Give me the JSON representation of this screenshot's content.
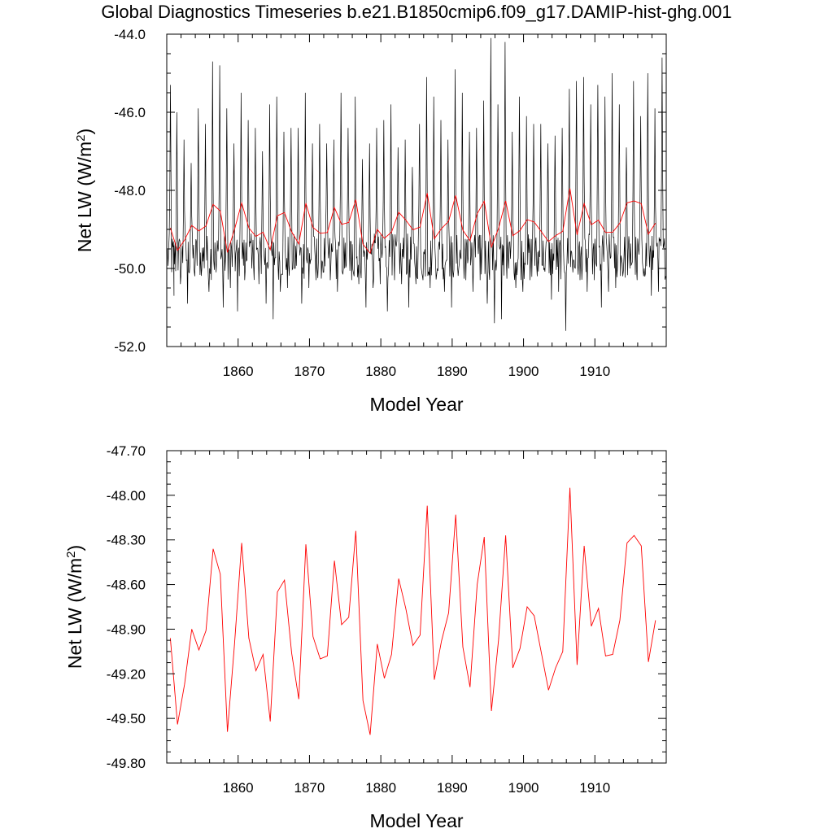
{
  "title": "Global Diagnostics Timeseries b.e21.B1850cmip6.f09_g17.DAMIP-hist-ghg.001",
  "colors": {
    "monthly": "#000000",
    "annual": "#ff0000",
    "axis": "#000000"
  },
  "chart_data": [
    {
      "type": "line",
      "xlabel": "Model Year",
      "ylabel_main": "Net LW (W/m",
      "ylabel_sup": "2",
      "ylabel_end": ")",
      "xlim": [
        1850,
        1920
      ],
      "ylim": [
        -52.0,
        -44.0
      ],
      "x_ticks": [
        1860,
        1870,
        1880,
        1890,
        1900,
        1910
      ],
      "y_ticks": [
        -52.0,
        -50.0,
        -48.0,
        -46.0,
        -44.0
      ],
      "y_tick_labels": [
        "-52.0",
        "-50.0",
        "-48.0",
        "-46.0",
        "-44.0"
      ],
      "grid": false,
      "series": [
        {
          "style": "monthly",
          "color": "#000000",
          "annual_peak_x": [
            1850.5,
            1851.4,
            1852.4,
            1853.4,
            1854.4,
            1855.4,
            1856.4,
            1857.4,
            1858.4,
            1859.4,
            1860.4,
            1861.4,
            1862.4,
            1863.4,
            1864.4,
            1865.4,
            1866.4,
            1867.4,
            1868.4,
            1869.4,
            1870.4,
            1871.4,
            1872.4,
            1873.4,
            1874.4,
            1875.4,
            1876.4,
            1877.4,
            1878.4,
            1879.4,
            1880.4,
            1881.4,
            1882.4,
            1883.4,
            1884.4,
            1885.4,
            1886.4,
            1887.4,
            1888.4,
            1889.4,
            1890.4,
            1891.4,
            1892.4,
            1893.4,
            1894.4,
            1895.4,
            1896.4,
            1897.4,
            1898.4,
            1899.4,
            1900.4,
            1901.4,
            1902.4,
            1903.4,
            1904.4,
            1905.4,
            1906.4,
            1907.4,
            1908.4,
            1909.4,
            1910.4,
            1911.4,
            1912.4,
            1913.4,
            1914.4,
            1915.4,
            1916.4,
            1917.4,
            1918.4,
            1919.4
          ],
          "annual_peak": [
            -45.3,
            -46.0,
            -46.7,
            -47.3,
            -45.9,
            -46.3,
            -44.7,
            -44.8,
            -45.9,
            -46.8,
            -45.5,
            -46.2,
            -46.4,
            -47.0,
            -45.8,
            -45.6,
            -46.5,
            -46.4,
            -46.4,
            -45.5,
            -46.8,
            -46.3,
            -46.8,
            -46.7,
            -45.5,
            -46.4,
            -45.6,
            -47.2,
            -46.8,
            -46.4,
            -46.2,
            -45.8,
            -46.9,
            -46.7,
            -47.4,
            -46.3,
            -45.1,
            -45.6,
            -46.2,
            -46.7,
            -44.9,
            -45.5,
            -46.5,
            -46.4,
            -45.7,
            -44.1,
            -45.8,
            -44.2,
            -46.5,
            -45.6,
            -46.1,
            -46.3,
            -46.3,
            -46.8,
            -46.6,
            -46.4,
            -45.4,
            -45.2,
            -45.1,
            -45.8,
            -45.3,
            -45.6,
            -45.0,
            -45.8,
            -46.9,
            -45.2,
            -46.1,
            -45.0,
            -45.9,
            -44.6
          ],
          "annual_trough": [
            -50.7,
            -50.4,
            -50.9,
            -50.2,
            -50.0,
            -50.6,
            -50.1,
            -51.0,
            -50.5,
            -51.1,
            -50.3,
            -50.0,
            -50.4,
            -50.9,
            -51.3,
            -50.6,
            -50.5,
            -50.0,
            -50.9,
            -50.5,
            -50.3,
            -50.1,
            -50.3,
            -50.6,
            -50.0,
            -50.3,
            -50.4,
            -51.0,
            -50.5,
            -50.4,
            -51.1,
            -50.3,
            -50.4,
            -51.0,
            -50.4,
            -50.3,
            -50.5,
            -50.0,
            -50.6,
            -51.0,
            -50.0,
            -50.3,
            -50.6,
            -50.3,
            -50.9,
            -51.4,
            -51.3,
            -50.0,
            -50.5,
            -50.6,
            -50.3,
            -50.2,
            -50.0,
            -50.8,
            -50.6,
            -51.6,
            -50.1,
            -50.3,
            -50.6,
            -50.3,
            -51.0,
            -50.6,
            -50.5,
            -50.2,
            -50.0,
            -50.3,
            -50.0,
            -50.7,
            -50.6,
            -50.2
          ]
        },
        {
          "style": "annual",
          "color": "#ff0000",
          "x": [
            1850.5,
            1851.5,
            1852.5,
            1853.5,
            1854.5,
            1855.5,
            1856.5,
            1857.5,
            1858.5,
            1859.5,
            1860.5,
            1861.5,
            1862.5,
            1863.5,
            1864.5,
            1865.5,
            1866.5,
            1867.5,
            1868.5,
            1869.5,
            1870.5,
            1871.5,
            1872.5,
            1873.5,
            1874.5,
            1875.5,
            1876.5,
            1877.5,
            1878.5,
            1879.5,
            1880.5,
            1881.5,
            1882.5,
            1883.5,
            1884.5,
            1885.5,
            1886.5,
            1887.5,
            1888.5,
            1889.5,
            1890.5,
            1891.5,
            1892.5,
            1893.5,
            1894.5,
            1895.5,
            1896.5,
            1897.5,
            1898.5,
            1899.5,
            1900.5,
            1901.5,
            1902.5,
            1903.5,
            1904.5,
            1905.5,
            1906.5,
            1907.5,
            1908.5,
            1909.5,
            1910.5,
            1911.5,
            1912.5,
            1913.5,
            1914.5,
            1915.5,
            1916.5,
            1917.5,
            1918.5
          ],
          "y": [
            -48.96,
            -49.54,
            -49.27,
            -48.9,
            -49.04,
            -48.91,
            -48.36,
            -48.53,
            -49.59,
            -49.0,
            -48.32,
            -48.96,
            -49.18,
            -49.07,
            -49.52,
            -48.65,
            -48.57,
            -49.06,
            -49.37,
            -48.33,
            -48.95,
            -49.1,
            -49.08,
            -48.44,
            -48.87,
            -48.82,
            -48.24,
            -49.38,
            -49.61,
            -49.0,
            -49.23,
            -49.07,
            -48.56,
            -48.76,
            -49.01,
            -48.94,
            -48.07,
            -49.24,
            -48.98,
            -48.79,
            -48.13,
            -49.02,
            -49.29,
            -48.6,
            -48.28,
            -49.45,
            -48.97,
            -48.27,
            -49.16,
            -49.03,
            -48.75,
            -48.81,
            -49.06,
            -49.31,
            -49.16,
            -49.05,
            -47.95,
            -49.14,
            -48.34,
            -48.88,
            -48.76,
            -49.08,
            -49.07,
            -48.84,
            -48.32,
            -48.27,
            -48.34,
            -49.12,
            -48.84
          ]
        }
      ]
    },
    {
      "type": "line",
      "xlabel": "Model Year",
      "ylabel_main": "Net LW (W/m",
      "ylabel_sup": "2",
      "ylabel_end": ")",
      "xlim": [
        1850,
        1920
      ],
      "ylim": [
        -49.8,
        -47.7
      ],
      "x_ticks": [
        1860,
        1870,
        1880,
        1890,
        1900,
        1910
      ],
      "y_ticks": [
        -49.8,
        -49.5,
        -49.2,
        -48.9,
        -48.6,
        -48.3,
        -48.0,
        -47.7
      ],
      "y_tick_labels": [
        "-49.80",
        "-49.50",
        "-49.20",
        "-48.90",
        "-48.60",
        "-48.30",
        "-48.00",
        "-47.70"
      ],
      "grid": false,
      "series": [
        {
          "style": "annual",
          "color": "#ff0000",
          "x": [
            1850.5,
            1851.5,
            1852.5,
            1853.5,
            1854.5,
            1855.5,
            1856.5,
            1857.5,
            1858.5,
            1859.5,
            1860.5,
            1861.5,
            1862.5,
            1863.5,
            1864.5,
            1865.5,
            1866.5,
            1867.5,
            1868.5,
            1869.5,
            1870.5,
            1871.5,
            1872.5,
            1873.5,
            1874.5,
            1875.5,
            1876.5,
            1877.5,
            1878.5,
            1879.5,
            1880.5,
            1881.5,
            1882.5,
            1883.5,
            1884.5,
            1885.5,
            1886.5,
            1887.5,
            1888.5,
            1889.5,
            1890.5,
            1891.5,
            1892.5,
            1893.5,
            1894.5,
            1895.5,
            1896.5,
            1897.5,
            1898.5,
            1899.5,
            1900.5,
            1901.5,
            1902.5,
            1903.5,
            1904.5,
            1905.5,
            1906.5,
            1907.5,
            1908.5,
            1909.5,
            1910.5,
            1911.5,
            1912.5,
            1913.5,
            1914.5,
            1915.5,
            1916.5,
            1917.5,
            1918.5
          ],
          "y": [
            -48.96,
            -49.54,
            -49.27,
            -48.9,
            -49.04,
            -48.91,
            -48.36,
            -48.53,
            -49.59,
            -49.0,
            -48.32,
            -48.96,
            -49.18,
            -49.07,
            -49.52,
            -48.65,
            -48.57,
            -49.06,
            -49.37,
            -48.33,
            -48.95,
            -49.1,
            -49.08,
            -48.44,
            -48.87,
            -48.82,
            -48.24,
            -49.38,
            -49.61,
            -49.0,
            -49.23,
            -49.07,
            -48.56,
            -48.76,
            -49.01,
            -48.94,
            -48.07,
            -49.24,
            -48.98,
            -48.79,
            -48.13,
            -49.02,
            -49.29,
            -48.6,
            -48.28,
            -49.45,
            -48.97,
            -48.27,
            -49.16,
            -49.03,
            -48.75,
            -48.81,
            -49.06,
            -49.31,
            -49.16,
            -49.05,
            -47.95,
            -49.14,
            -48.34,
            -48.88,
            -48.76,
            -49.08,
            -49.07,
            -48.84,
            -48.32,
            -48.27,
            -48.34,
            -49.12,
            -48.84
          ]
        }
      ]
    }
  ]
}
